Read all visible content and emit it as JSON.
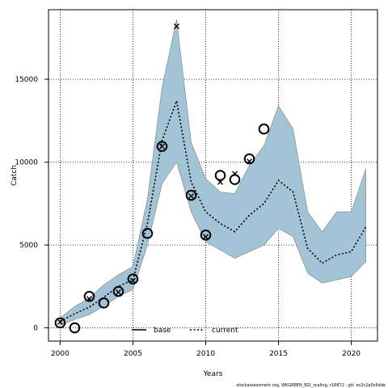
{
  "chart_data": {
    "type": "line",
    "xlabel": "Years",
    "ylabel": "Catch",
    "xlim": [
      1999.2,
      2021.8
    ],
    "ylim": [
      -800,
      19200
    ],
    "x_ticks": [
      2000,
      2005,
      2010,
      2015,
      2020
    ],
    "y_ticks": [
      0,
      5000,
      10000,
      15000
    ],
    "x_tick_labels": [
      "2000",
      "2005",
      "2010",
      "2015",
      "2020"
    ],
    "y_tick_labels": [
      "0",
      "5000",
      "10000",
      "15000"
    ],
    "grid": true,
    "legend": {
      "placement": "bottom-center",
      "entries": [
        {
          "label": "base",
          "style": "solid"
        },
        {
          "label": "current",
          "style": "dotted"
        }
      ]
    },
    "ribbon": {
      "color": "#a2c4d6",
      "x": [
        2000,
        2001,
        2002,
        2003,
        2004,
        2005,
        2006,
        2007,
        2008,
        2009,
        2010,
        2011,
        2012,
        2013,
        2014,
        2015,
        2016,
        2017,
        2018,
        2019,
        2020,
        2021
      ],
      "upper": [
        600,
        1300,
        1800,
        2600,
        3200,
        3700,
        7800,
        14500,
        18600,
        11200,
        9000,
        8200,
        8100,
        9800,
        11000,
        13400,
        12000,
        7000,
        5800,
        7000,
        7000,
        9600
      ],
      "lower": [
        150,
        500,
        800,
        1300,
        1900,
        2300,
        5000,
        8700,
        10000,
        7000,
        5200,
        4700,
        4200,
        4600,
        5000,
        6000,
        5500,
        3300,
        2700,
        2900,
        3100,
        4000
      ]
    },
    "series": [
      {
        "name": "current",
        "style": "dotted",
        "x": [
          2000,
          2001,
          2002,
          2003,
          2004,
          2005,
          2006,
          2007,
          2008,
          2009,
          2010,
          2011,
          2012,
          2013,
          2014,
          2015,
          2016,
          2017,
          2018,
          2019,
          2020,
          2021
        ],
        "values": [
          400,
          850,
          1250,
          1850,
          2500,
          2900,
          6300,
          11300,
          13700,
          8800,
          7000,
          6300,
          5800,
          6800,
          7500,
          8900,
          8200,
          4800,
          3900,
          4400,
          4600,
          6100
        ]
      }
    ],
    "observed": {
      "marker": "circle",
      "x": [
        2000,
        2001,
        2002,
        2003,
        2004,
        2005,
        2006,
        2007,
        2009,
        2010,
        2011,
        2012,
        2013,
        2014
      ],
      "values": [
        300,
        0,
        1900,
        1500,
        2200,
        2950,
        5700,
        10950,
        8000,
        5600,
        9200,
        8950,
        10200,
        12000
      ]
    },
    "predicted": {
      "marker": "x",
      "x": [
        2000,
        2002,
        2004,
        2005,
        2007,
        2008,
        2009,
        2010,
        2011,
        2012,
        2013
      ],
      "values": [
        350,
        1750,
        2150,
        2850,
        10950,
        18200,
        7950,
        5500,
        8800,
        9300,
        10050
      ]
    }
  },
  "footer_text": "stockassessment.org, WKGREEN_EGI_scaling, r16872 , git: ec2c2a0c6dde"
}
